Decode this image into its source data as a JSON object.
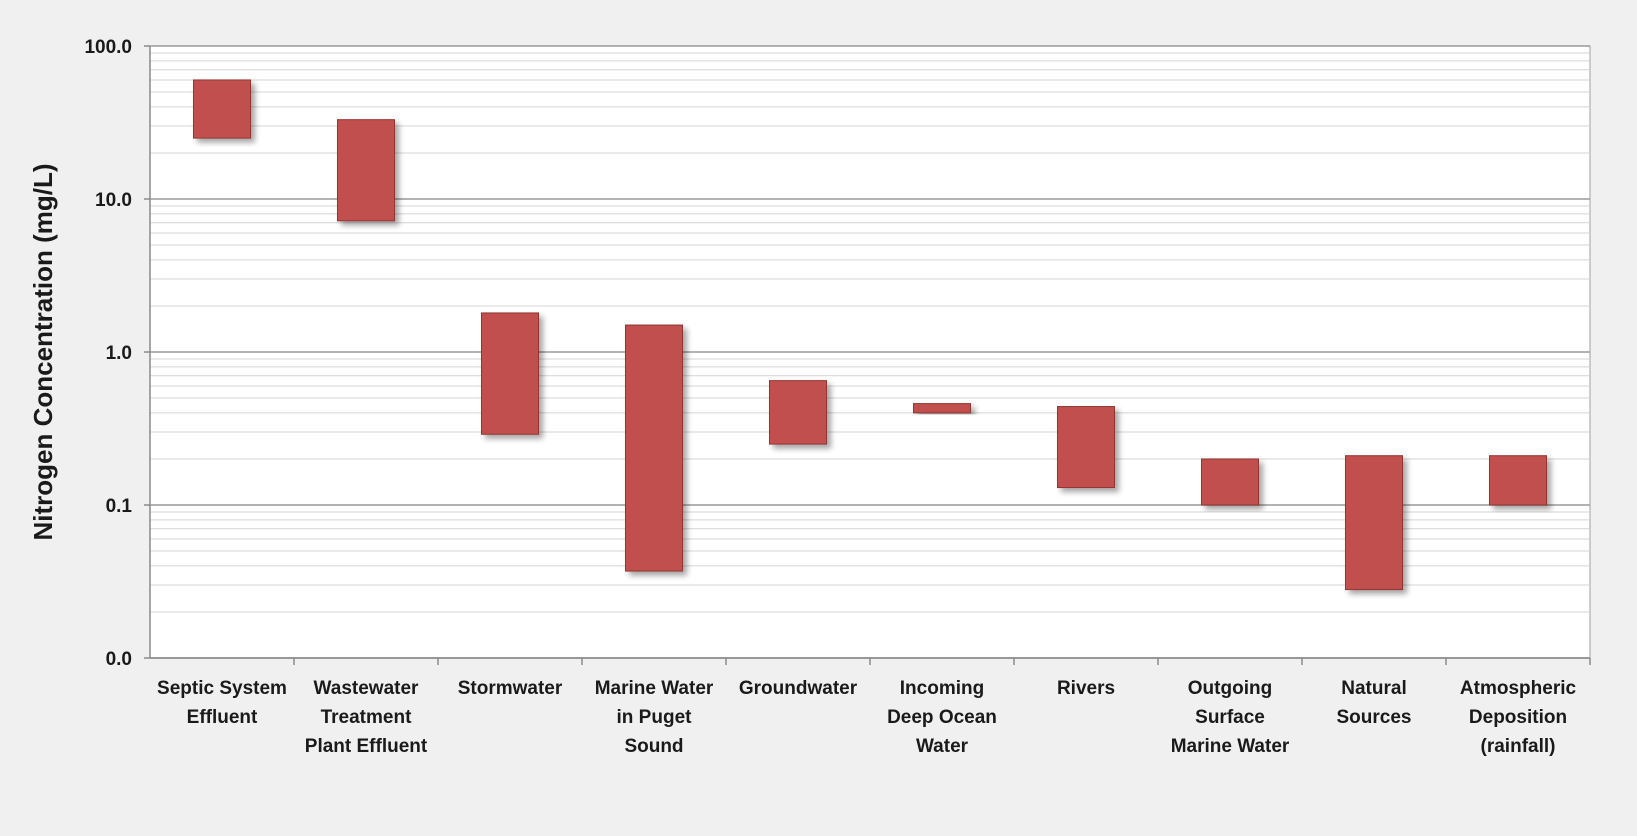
{
  "chart_data": {
    "type": "bar",
    "subtype": "floating-range",
    "scale": "log",
    "ylabel": "Nitrogen Concentration (mg/L)",
    "ylim": [
      0.01,
      100
    ],
    "yticks": [
      {
        "value": 100,
        "label": "100.0"
      },
      {
        "value": 10,
        "label": "10.0"
      },
      {
        "value": 1,
        "label": "1.0"
      },
      {
        "value": 0.1,
        "label": "0.1"
      },
      {
        "value": 0.01,
        "label": "0.0"
      }
    ],
    "grid": true,
    "bar_color": "#c0504d",
    "categories": [
      [
        "Septic System",
        "Effluent"
      ],
      [
        "Wastewater",
        "Treatment",
        "Plant Effluent"
      ],
      [
        "Stormwater"
      ],
      [
        "Marine Water",
        "in Puget",
        "Sound"
      ],
      [
        "Groundwater"
      ],
      [
        "Incoming",
        "Deep Ocean",
        "Water"
      ],
      [
        "Rivers"
      ],
      [
        "Outgoing",
        "Surface",
        "Marine Water"
      ],
      [
        "Natural",
        "Sources"
      ],
      [
        "Atmospheric",
        "Deposition",
        "(rainfall)"
      ]
    ],
    "ranges": [
      {
        "low": 25,
        "high": 60
      },
      {
        "low": 7.2,
        "high": 33
      },
      {
        "low": 0.29,
        "high": 1.8
      },
      {
        "low": 0.037,
        "high": 1.5
      },
      {
        "low": 0.25,
        "high": 0.65
      },
      {
        "low": 0.4,
        "high": 0.46
      },
      {
        "low": 0.13,
        "high": 0.44
      },
      {
        "low": 0.1,
        "high": 0.2
      },
      {
        "low": 0.028,
        "high": 0.21
      },
      {
        "low": 0.1,
        "high": 0.21
      }
    ]
  }
}
